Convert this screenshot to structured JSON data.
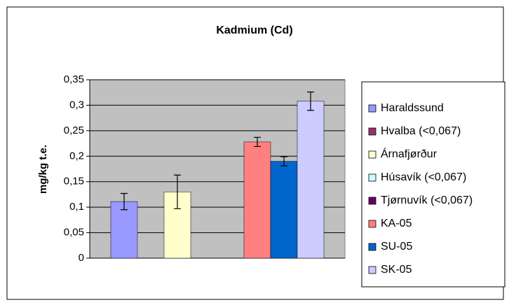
{
  "chart_data": {
    "type": "bar",
    "title": "Kadmium (Cd)",
    "y_label": "mg/kg t.e.",
    "categories": [
      null
    ],
    "series": [
      {
        "name": "Haraldssund",
        "color": "#9999ff",
        "values": [
          0.111
        ],
        "errors": [
          0.016
        ]
      },
      {
        "name": "Hvalba (<0,067)",
        "color": "#993366",
        "values": [
          null
        ],
        "errors": [
          null
        ]
      },
      {
        "name": "Árnafjørður",
        "color": "#ffffcc",
        "values": [
          0.13
        ],
        "errors": [
          0.033
        ]
      },
      {
        "name": "Húsavík (<0,067)",
        "color": "#ccffff",
        "values": [
          null
        ],
        "errors": [
          null
        ]
      },
      {
        "name": "Tjørnuvík (<0,067)",
        "color": "#660066",
        "values": [
          null
        ],
        "errors": [
          null
        ]
      },
      {
        "name": "KA-05",
        "color": "#ff8080",
        "values": [
          0.228
        ],
        "errors": [
          0.009
        ]
      },
      {
        "name": "SU-05",
        "color": "#0066cc",
        "values": [
          0.19
        ],
        "errors": [
          0.009
        ]
      },
      {
        "name": "SK-05",
        "color": "#ccccff",
        "values": [
          0.308
        ],
        "errors": [
          0.018
        ]
      }
    ],
    "ylim": [
      0,
      0.35
    ],
    "yticks": [
      0,
      {
        "value": 0.05,
        "label": "0,05"
      },
      {
        "value": 0.1,
        "label": "0,1"
      },
      {
        "value": 0.15,
        "label": "0,15"
      },
      {
        "value": 0.2,
        "label": "0,2"
      },
      {
        "value": 0.25,
        "label": "0,25"
      },
      {
        "value": 0.3,
        "label": "0,3"
      },
      {
        "value": 0.35,
        "label": "0,35"
      }
    ],
    "grid": true,
    "plot_background": "#c0c0c0",
    "legend": "right"
  }
}
